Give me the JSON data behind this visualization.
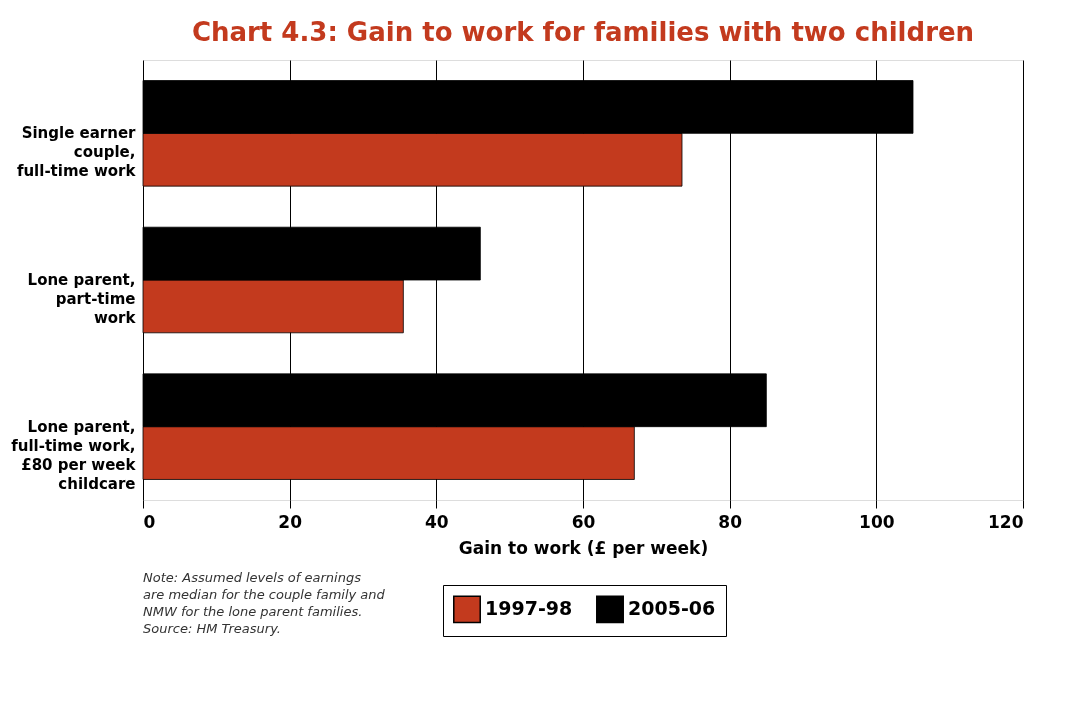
{
  "chart_data": {
    "type": "bar",
    "orientation": "horizontal",
    "title": "Chart 4.3: Gain to work for families with two children",
    "xlabel": "Gain to work (£ per week)",
    "categories": [
      "Single earner\ncouple,\nfull-time work",
      "Lone parent,\npart-time\nwork",
      "Lone parent,\nfull-time work,\n£80 per week\nchildcare"
    ],
    "series": [
      {
        "name": "1997-98",
        "color": "#c33a1e",
        "values": [
          73.5,
          35.5,
          67
        ]
      },
      {
        "name": "2005-06",
        "color": "#000000",
        "values": [
          105,
          46,
          85
        ]
      }
    ],
    "xlim": [
      0,
      120
    ],
    "xticks": [
      0,
      20,
      40,
      60,
      80,
      100,
      120
    ],
    "grid": "x",
    "legend": "bottom",
    "annotations": [
      "Note: Assumed levels of earnings\nare median for the couple family and\nNMW for the lone parent families.\nSource: HM Treasury."
    ]
  }
}
